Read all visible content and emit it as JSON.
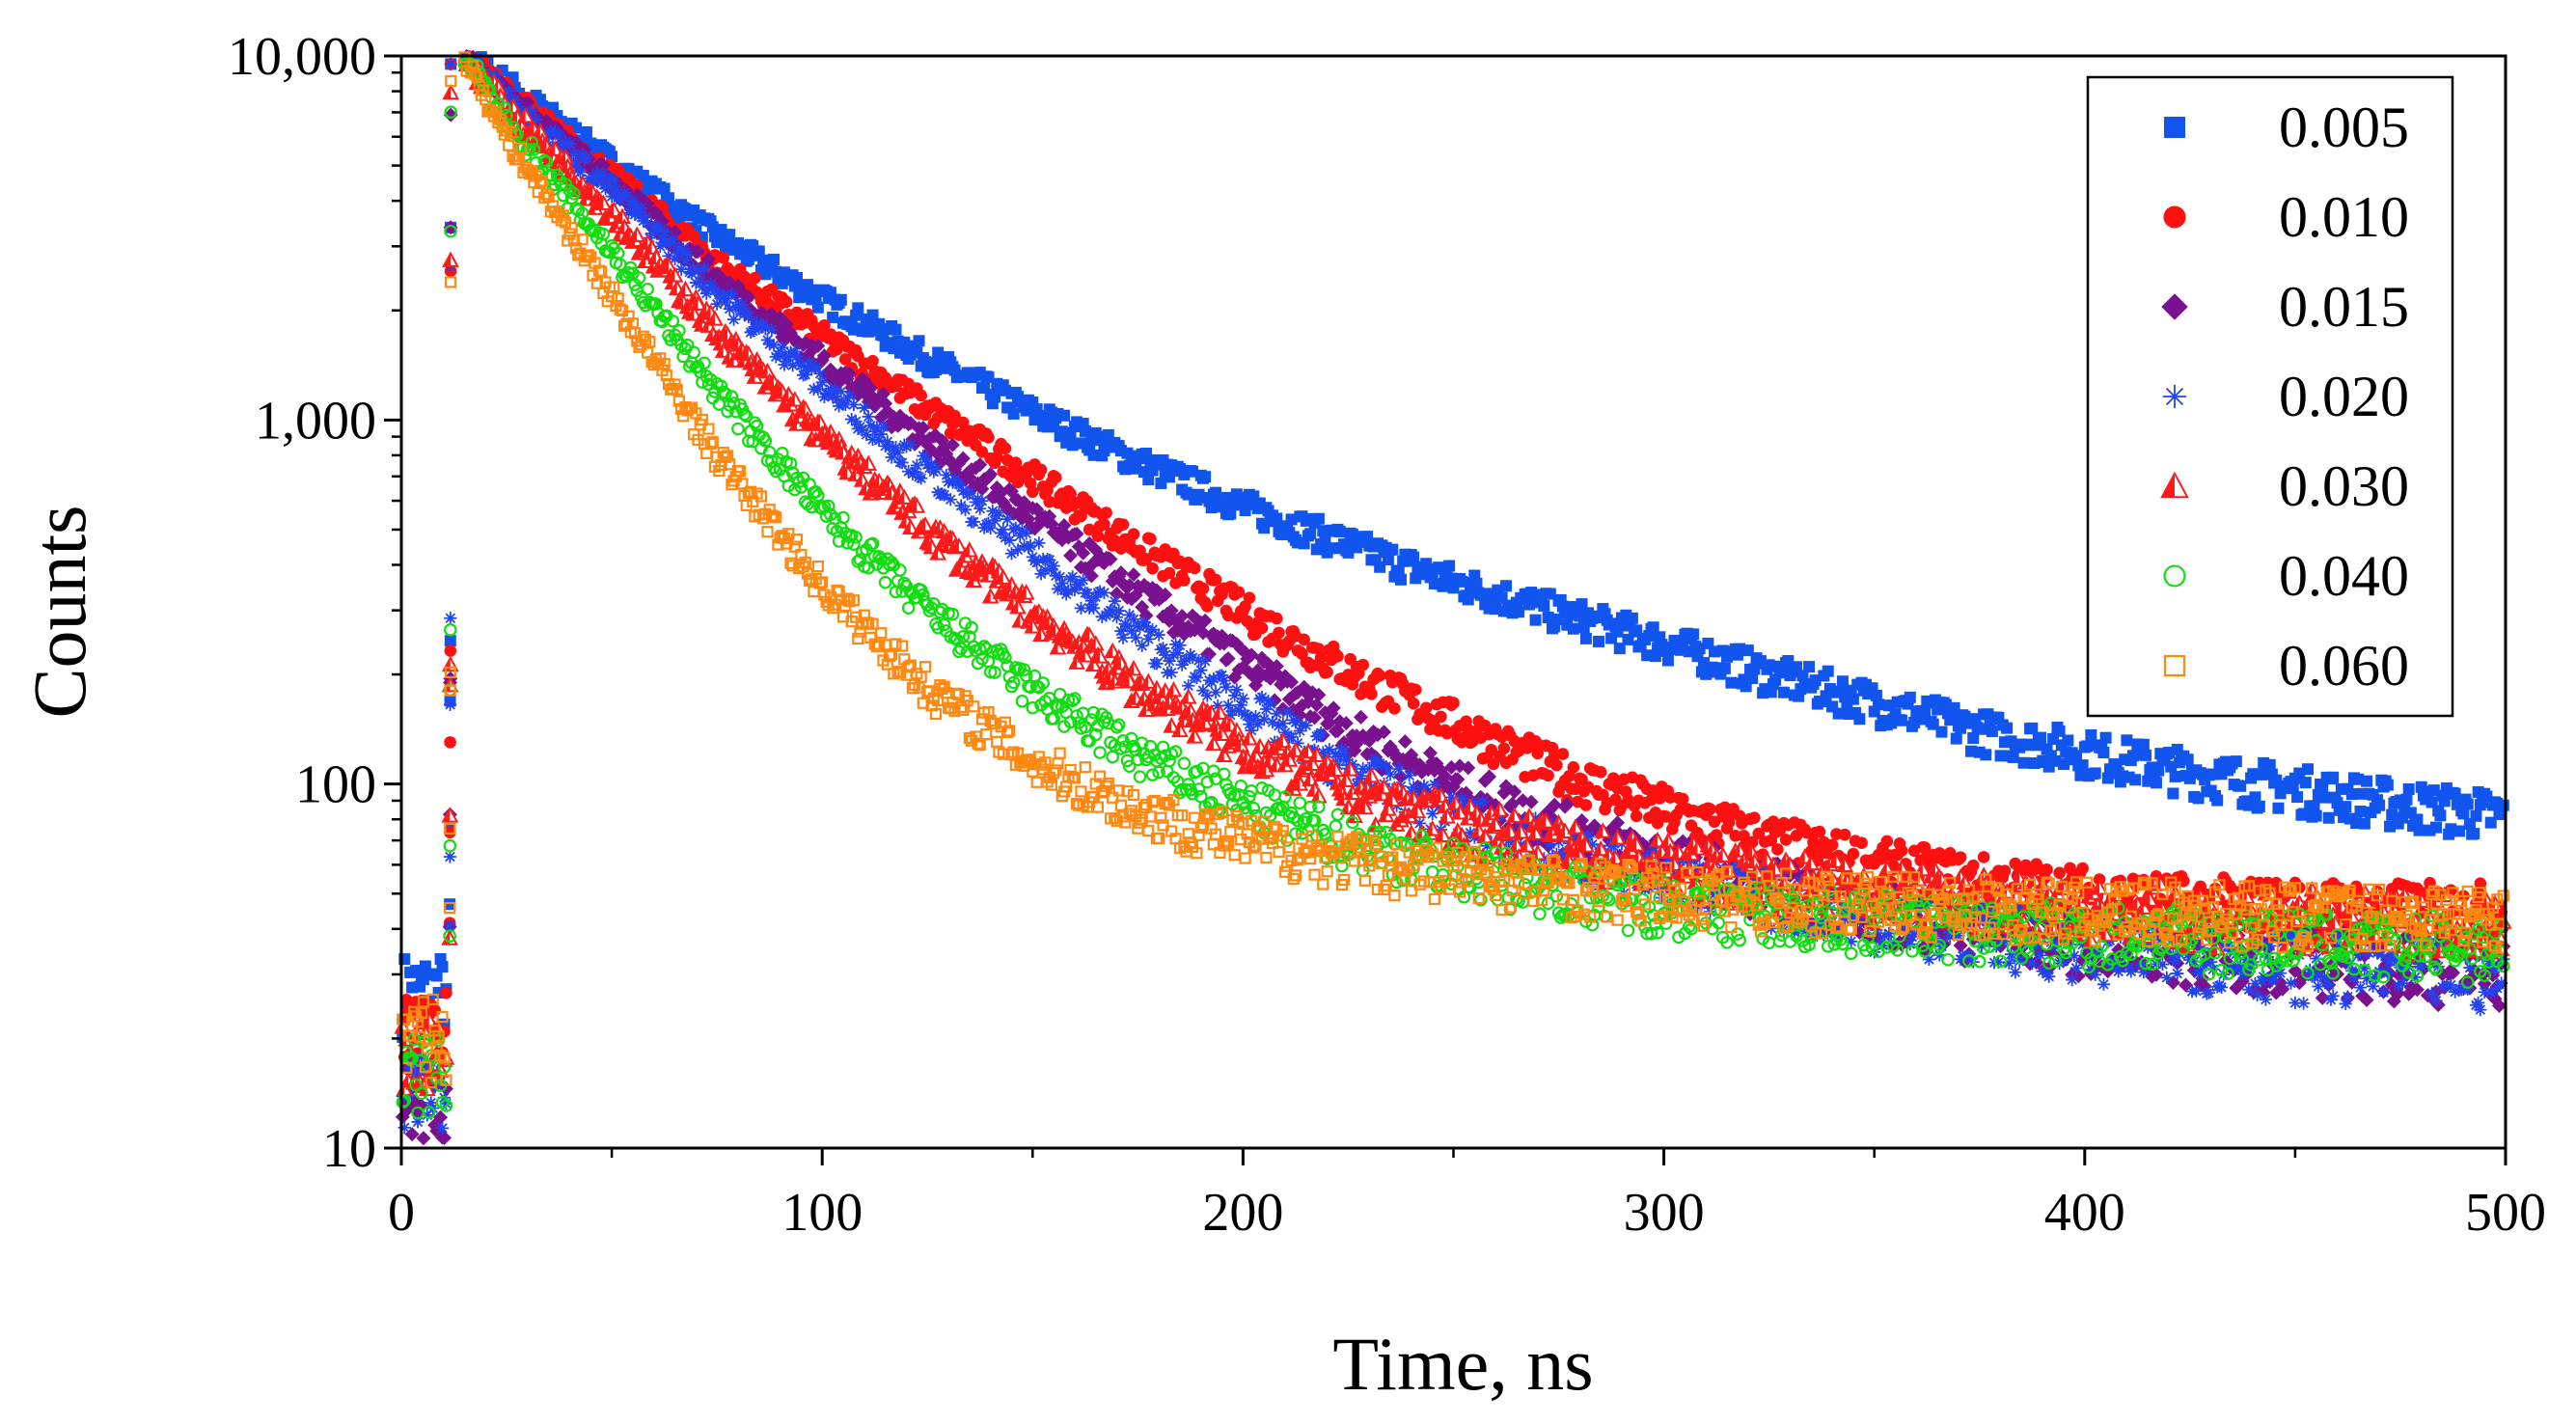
{
  "chart_data": {
    "type": "scatter",
    "title": "",
    "xlabel": "Time, ns",
    "ylabel": "Counts",
    "x_range": [
      0,
      500
    ],
    "y_range": [
      10,
      10000
    ],
    "y_scale": "log",
    "x_ticks": [
      {
        "value": 0,
        "label": "0"
      },
      {
        "value": 100,
        "label": "100"
      },
      {
        "value": 200,
        "label": "200"
      },
      {
        "value": 300,
        "label": "300"
      },
      {
        "value": 400,
        "label": "400"
      },
      {
        "value": 500,
        "label": "500"
      }
    ],
    "y_ticks": [
      {
        "value": 10,
        "label": "10"
      },
      {
        "value": 100,
        "label": "100"
      },
      {
        "value": 1000,
        "label": "1,000"
      },
      {
        "value": 10000,
        "label": "10,000"
      }
    ],
    "grid": false,
    "legend_position": "top-right",
    "rise_time_ns": 11,
    "peak_time_ns": 15,
    "series": [
      {
        "name": "0.005",
        "color": "#1155ee",
        "marker": "square-filled",
        "baseline_counts": 28,
        "points": [
          [
            15,
            10000
          ],
          [
            25,
            8500
          ],
          [
            50,
            5100
          ],
          [
            75,
            3200
          ],
          [
            100,
            2150
          ],
          [
            125,
            1480
          ],
          [
            150,
            1050
          ],
          [
            175,
            770
          ],
          [
            200,
            580
          ],
          [
            225,
            455
          ],
          [
            250,
            360
          ],
          [
            275,
            295
          ],
          [
            300,
            245
          ],
          [
            325,
            200
          ],
          [
            350,
            168
          ],
          [
            375,
            140
          ],
          [
            400,
            122
          ],
          [
            425,
            108
          ],
          [
            450,
            97
          ],
          [
            475,
            88
          ],
          [
            500,
            82
          ]
        ]
      },
      {
        "name": "0.010",
        "color": "#ff1010",
        "marker": "circle-filled",
        "baseline_counts": 22,
        "points": [
          [
            15,
            10000
          ],
          [
            25,
            8000
          ],
          [
            50,
            4700
          ],
          [
            75,
            2700
          ],
          [
            100,
            1700
          ],
          [
            125,
            1080
          ],
          [
            150,
            700
          ],
          [
            175,
            450
          ],
          [
            200,
            300
          ],
          [
            225,
            205
          ],
          [
            250,
            148
          ],
          [
            275,
            108
          ],
          [
            300,
            85
          ],
          [
            325,
            70
          ],
          [
            350,
            60
          ],
          [
            375,
            54
          ],
          [
            400,
            50
          ],
          [
            425,
            47
          ],
          [
            450,
            46
          ],
          [
            475,
            45
          ],
          [
            500,
            45
          ]
        ]
      },
      {
        "name": "0.015",
        "color": "#7a128f",
        "marker": "diamond-filled",
        "baseline_counts": 14,
        "points": [
          [
            15,
            10000
          ],
          [
            25,
            7800
          ],
          [
            50,
            4500
          ],
          [
            75,
            2450
          ],
          [
            100,
            1450
          ],
          [
            125,
            880
          ],
          [
            150,
            540
          ],
          [
            175,
            335
          ],
          [
            200,
            215
          ],
          [
            225,
            140
          ],
          [
            250,
            100
          ],
          [
            275,
            77
          ],
          [
            300,
            62
          ],
          [
            325,
            52
          ],
          [
            350,
            45
          ],
          [
            375,
            40
          ],
          [
            400,
            37
          ],
          [
            425,
            35
          ],
          [
            450,
            33
          ],
          [
            475,
            32
          ],
          [
            500,
            31
          ]
        ]
      },
      {
        "name": "0.020",
        "color": "#2244ee",
        "marker": "asterisk",
        "baseline_counts": 15,
        "points": [
          [
            15,
            10000
          ],
          [
            25,
            7700
          ],
          [
            50,
            4300
          ],
          [
            75,
            2250
          ],
          [
            100,
            1250
          ],
          [
            125,
            720
          ],
          [
            150,
            430
          ],
          [
            175,
            260
          ],
          [
            200,
            165
          ],
          [
            225,
            110
          ],
          [
            250,
            82
          ],
          [
            275,
            66
          ],
          [
            300,
            56
          ],
          [
            325,
            49
          ],
          [
            350,
            43
          ],
          [
            375,
            39
          ],
          [
            400,
            36
          ],
          [
            425,
            34
          ],
          [
            450,
            32
          ],
          [
            475,
            31
          ],
          [
            500,
            30
          ]
        ]
      },
      {
        "name": "0.030",
        "color": "#ff1a1a",
        "marker": "triangle-half",
        "baseline_counts": 20,
        "points": [
          [
            15,
            10000
          ],
          [
            25,
            7200
          ],
          [
            50,
            3700
          ],
          [
            75,
            1750
          ],
          [
            100,
            900
          ],
          [
            125,
            500
          ],
          [
            150,
            295
          ],
          [
            175,
            185
          ],
          [
            200,
            128
          ],
          [
            225,
            96
          ],
          [
            250,
            78
          ],
          [
            275,
            67
          ],
          [
            300,
            60
          ],
          [
            325,
            55
          ],
          [
            350,
            51
          ],
          [
            375,
            48
          ],
          [
            400,
            46
          ],
          [
            425,
            44
          ],
          [
            450,
            43
          ],
          [
            475,
            42
          ],
          [
            500,
            42
          ]
        ]
      },
      {
        "name": "0.040",
        "color": "#11dd11",
        "marker": "circle-open",
        "baseline_counts": 17,
        "points": [
          [
            15,
            10000
          ],
          [
            25,
            6600
          ],
          [
            50,
            2900
          ],
          [
            75,
            1200
          ],
          [
            100,
            560
          ],
          [
            125,
            300
          ],
          [
            150,
            180
          ],
          [
            175,
            120
          ],
          [
            200,
            88
          ],
          [
            225,
            70
          ],
          [
            250,
            59
          ],
          [
            275,
            52
          ],
          [
            300,
            47
          ],
          [
            325,
            44
          ],
          [
            350,
            42
          ],
          [
            375,
            40
          ],
          [
            400,
            39
          ],
          [
            425,
            38
          ],
          [
            450,
            37
          ],
          [
            475,
            36
          ],
          [
            500,
            36
          ]
        ]
      },
      {
        "name": "0.060",
        "color": "#ff8811",
        "marker": "square-open",
        "baseline_counts": 21,
        "points": [
          [
            15,
            10000
          ],
          [
            25,
            6000
          ],
          [
            50,
            2200
          ],
          [
            75,
            800
          ],
          [
            100,
            350
          ],
          [
            125,
            185
          ],
          [
            150,
            115
          ],
          [
            175,
            85
          ],
          [
            200,
            70
          ],
          [
            225,
            62
          ],
          [
            250,
            57
          ],
          [
            275,
            53
          ],
          [
            300,
            50
          ],
          [
            325,
            48
          ],
          [
            350,
            47
          ],
          [
            375,
            46
          ],
          [
            400,
            45
          ],
          [
            425,
            45
          ],
          [
            450,
            44
          ],
          [
            475,
            44
          ],
          [
            500,
            44
          ]
        ]
      }
    ]
  }
}
